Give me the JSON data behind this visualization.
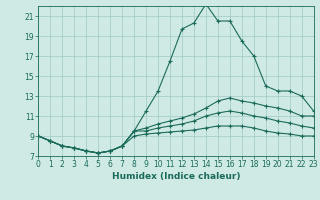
{
  "xlabel": "Humidex (Indice chaleur)",
  "xlim": [
    0,
    23
  ],
  "ylim": [
    7,
    22
  ],
  "yticks": [
    7,
    9,
    11,
    13,
    15,
    17,
    19,
    21
  ],
  "xticks": [
    0,
    1,
    2,
    3,
    4,
    5,
    6,
    7,
    8,
    9,
    10,
    11,
    12,
    13,
    14,
    15,
    16,
    17,
    18,
    19,
    20,
    21,
    22,
    23
  ],
  "bg_color": "#cfe9e5",
  "grid_color": "#a0c8c4",
  "line_color": "#1a6b5a",
  "line1_x": [
    0,
    1,
    2,
    3,
    4,
    5,
    6,
    7,
    8,
    9,
    10,
    11,
    12,
    13,
    14,
    15,
    16,
    17,
    18,
    19,
    20,
    21,
    22,
    23
  ],
  "line1_y": [
    9.0,
    8.5,
    8.0,
    7.8,
    7.5,
    7.3,
    7.5,
    8.0,
    9.5,
    11.5,
    13.5,
    16.5,
    19.7,
    20.3,
    22.2,
    20.5,
    20.5,
    18.5,
    17.0,
    14.0,
    13.5,
    13.5,
    13.0,
    11.5
  ],
  "line2_x": [
    0,
    1,
    2,
    3,
    4,
    5,
    6,
    7,
    8,
    9,
    10,
    11,
    12,
    13,
    14,
    15,
    16,
    17,
    18,
    19,
    20,
    21,
    22,
    23
  ],
  "line2_y": [
    9.0,
    8.5,
    8.0,
    7.8,
    7.5,
    7.3,
    7.5,
    8.0,
    9.5,
    9.8,
    10.2,
    10.5,
    10.8,
    11.2,
    11.8,
    12.5,
    12.8,
    12.5,
    12.3,
    12.0,
    11.8,
    11.5,
    11.0,
    11.0
  ],
  "line3_x": [
    0,
    1,
    2,
    3,
    4,
    5,
    6,
    7,
    8,
    9,
    10,
    11,
    12,
    13,
    14,
    15,
    16,
    17,
    18,
    19,
    20,
    21,
    22,
    23
  ],
  "line3_y": [
    9.0,
    8.5,
    8.0,
    7.8,
    7.5,
    7.3,
    7.5,
    8.0,
    9.5,
    9.5,
    9.8,
    10.0,
    10.2,
    10.5,
    11.0,
    11.3,
    11.5,
    11.3,
    11.0,
    10.8,
    10.5,
    10.3,
    10.0,
    9.8
  ],
  "line4_x": [
    0,
    1,
    2,
    3,
    4,
    5,
    6,
    7,
    8,
    9,
    10,
    11,
    12,
    13,
    14,
    15,
    16,
    17,
    18,
    19,
    20,
    21,
    22,
    23
  ],
  "line4_y": [
    9.0,
    8.5,
    8.0,
    7.8,
    7.5,
    7.3,
    7.5,
    8.0,
    9.0,
    9.2,
    9.3,
    9.4,
    9.5,
    9.6,
    9.8,
    10.0,
    10.0,
    10.0,
    9.8,
    9.5,
    9.3,
    9.2,
    9.0,
    9.0
  ]
}
